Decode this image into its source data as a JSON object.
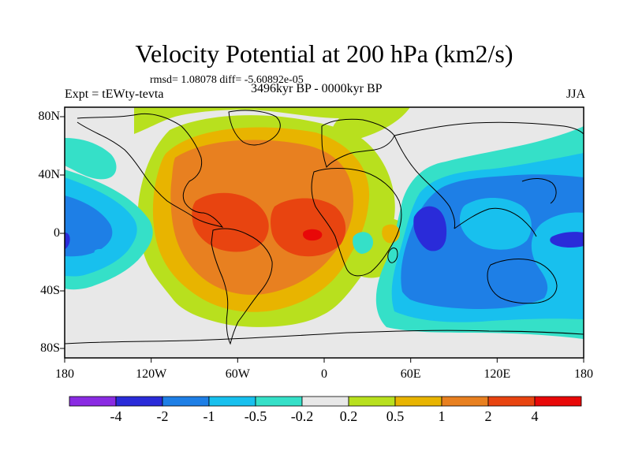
{
  "figure": {
    "title": "Velocity Potential at 200 hPa (km2/s)",
    "stats": "rmsd= 1.08078 diff= -5.60892e-05",
    "experiment": "Expt = tEWty-tevta",
    "period": "3496kyr BP - 0000kyr BP",
    "season": "JJA"
  },
  "axes": {
    "x_labels": [
      "180",
      "120W",
      "60W",
      "0",
      "60E",
      "120E",
      "180"
    ],
    "y_labels": [
      "80N",
      "40N",
      "0",
      "40S",
      "80S"
    ]
  },
  "colorbar": {
    "labels": [
      "-4",
      "-2",
      "-1",
      "-0.5",
      "-0.2",
      "0.2",
      "0.5",
      "1",
      "2",
      "4"
    ],
    "colors": [
      "#8a2be2",
      "#2a2bd9",
      "#1e7fe6",
      "#18c0ee",
      "#35e0c8",
      "#e8e8e8",
      "#b8e01e",
      "#e8b400",
      "#e88020",
      "#e84410",
      "#e80808"
    ]
  },
  "colors": {
    "background": "#ffffff",
    "frame": "#000000",
    "coastline": "#000000"
  }
}
